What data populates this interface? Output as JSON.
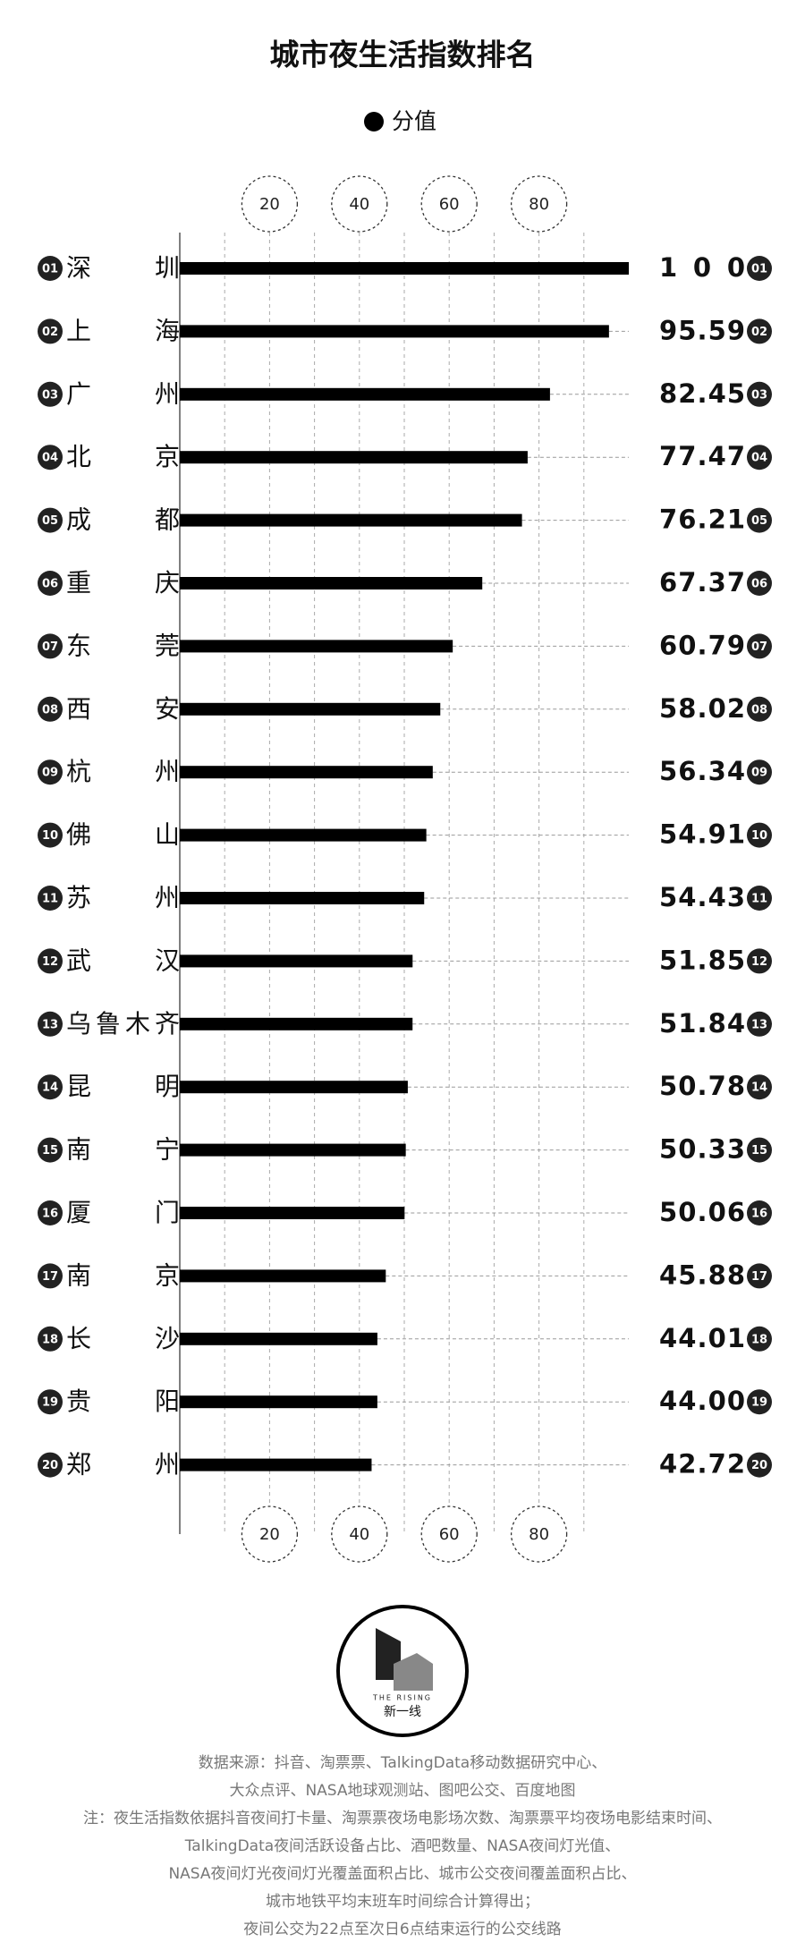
{
  "chart_data": {
    "type": "bar",
    "orientation": "horizontal",
    "title": "城市夜生活指数排名",
    "categories": [
      "深圳",
      "上海",
      "广州",
      "北京",
      "成都",
      "重庆",
      "东莞",
      "西安",
      "杭州",
      "佛山",
      "苏州",
      "武汉",
      "乌鲁木齐",
      "昆明",
      "南宁",
      "厦门",
      "南京",
      "长沙",
      "贵阳",
      "郑州"
    ],
    "ranks": [
      "01",
      "02",
      "03",
      "04",
      "05",
      "06",
      "07",
      "08",
      "09",
      "10",
      "11",
      "12",
      "13",
      "14",
      "15",
      "16",
      "17",
      "18",
      "19",
      "20"
    ],
    "series": [
      {
        "name": "分值",
        "color": "#000000",
        "values": [
          100,
          95.59,
          82.45,
          77.47,
          76.21,
          67.37,
          60.79,
          58.02,
          56.34,
          54.91,
          54.43,
          51.85,
          51.84,
          50.78,
          50.33,
          50.06,
          45.88,
          44.01,
          44.0,
          42.72
        ],
        "value_labels": [
          "100",
          "95.59",
          "82.45",
          "77.47",
          "76.21",
          "67.37",
          "60.79",
          "58.02",
          "56.34",
          "54.91",
          "54.43",
          "51.85",
          "51.84",
          "50.78",
          "50.33",
          "50.06",
          "45.88",
          "44.01",
          "44.00",
          "42.72"
        ]
      }
    ],
    "xlim": [
      0,
      100
    ],
    "xticks": [
      20,
      40,
      60,
      80
    ],
    "xgrid": [
      10,
      20,
      30,
      40,
      50,
      60,
      70,
      80,
      90
    ],
    "grid": true,
    "legend": "top",
    "logo": {
      "brand": "THE RISING",
      "name": "新一线"
    },
    "notes": [
      "数据来源：抖音、淘票票、TalkingData移动数据研究中心、",
      "大众点评、NASA地球观测站、图吧公交、百度地图",
      "注：夜生活指数依据抖音夜间打卡量、淘票票夜场电影场次数、淘票票平均夜场电影结束时间、",
      "TalkingData夜间活跃设备占比、酒吧数量、NASA夜间灯光值、",
      "NASA夜间灯光夜间灯光覆盖面积占比、城市公交夜间覆盖面积占比、",
      "城市地铁平均末班车时间综合计算得出；",
      "夜间公交为22点至次日6点结束运行的公交线路"
    ]
  }
}
